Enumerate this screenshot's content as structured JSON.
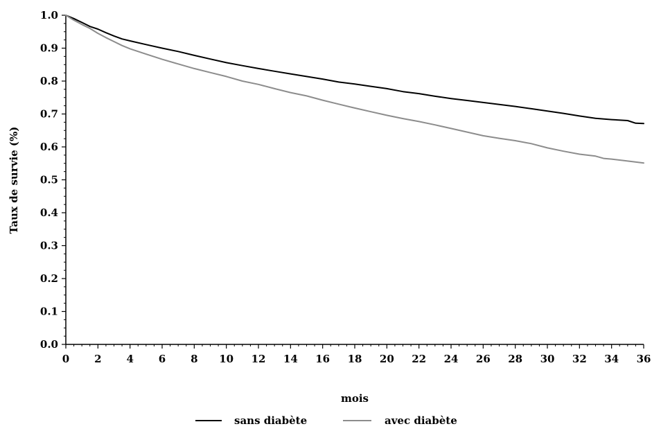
{
  "chart_data": {
    "type": "line",
    "title": "",
    "xlabel": "mois",
    "ylabel": "Taux de survie (%)",
    "xlim": [
      0,
      36
    ],
    "ylim": [
      0,
      1.0
    ],
    "xticks": [
      0,
      2,
      4,
      6,
      8,
      10,
      12,
      14,
      16,
      18,
      20,
      22,
      24,
      26,
      28,
      30,
      32,
      34,
      36
    ],
    "yticks": [
      0.0,
      0.1,
      0.2,
      0.3,
      0.4,
      0.5,
      0.6,
      0.7,
      0.8,
      0.9,
      1.0
    ],
    "ytick_labels": [
      "0.0",
      "0.1",
      "0.2",
      "0.3",
      "0.4",
      "0.5",
      "0.6",
      "0.7",
      "0.8",
      "0.9",
      "1.0"
    ],
    "grid": false,
    "legend_position": "bottom",
    "series": [
      {
        "name": "sans diabète",
        "color": "#000000",
        "x": [
          0,
          0.5,
          1,
          1.5,
          2,
          2.5,
          3,
          3.5,
          4,
          5,
          6,
          7,
          8,
          9,
          10,
          11,
          12,
          13,
          14,
          15,
          16,
          17,
          18,
          19,
          20,
          21,
          22,
          23,
          24,
          25,
          26,
          27,
          28,
          29,
          30,
          31,
          32,
          33,
          34,
          35,
          35.5,
          36
        ],
        "y": [
          1.0,
          0.99,
          0.978,
          0.966,
          0.958,
          0.947,
          0.937,
          0.928,
          0.922,
          0.911,
          0.9,
          0.89,
          0.878,
          0.867,
          0.856,
          0.847,
          0.838,
          0.83,
          0.822,
          0.814,
          0.806,
          0.797,
          0.791,
          0.784,
          0.777,
          0.768,
          0.762,
          0.754,
          0.747,
          0.741,
          0.735,
          0.729,
          0.723,
          0.716,
          0.709,
          0.702,
          0.694,
          0.687,
          0.683,
          0.68,
          0.672,
          0.671
        ]
      },
      {
        "name": "avec diabète",
        "color": "#8c8c8c",
        "x": [
          0,
          0.5,
          1,
          1.5,
          2,
          2.5,
          3,
          3.5,
          4,
          5,
          6,
          7,
          8,
          9,
          10,
          11,
          12,
          13,
          14,
          15,
          16,
          17,
          18,
          19,
          20,
          21,
          22,
          23,
          24,
          25,
          26,
          27,
          28,
          29,
          30,
          31,
          32,
          33,
          33.5,
          34,
          35,
          36
        ],
        "y": [
          1.0,
          0.985,
          0.972,
          0.96,
          0.945,
          0.932,
          0.92,
          0.908,
          0.898,
          0.882,
          0.866,
          0.852,
          0.838,
          0.826,
          0.814,
          0.8,
          0.79,
          0.777,
          0.765,
          0.755,
          0.742,
          0.73,
          0.718,
          0.707,
          0.696,
          0.686,
          0.677,
          0.667,
          0.656,
          0.645,
          0.634,
          0.626,
          0.619,
          0.61,
          0.597,
          0.587,
          0.578,
          0.572,
          0.565,
          0.563,
          0.557,
          0.551
        ]
      }
    ]
  }
}
